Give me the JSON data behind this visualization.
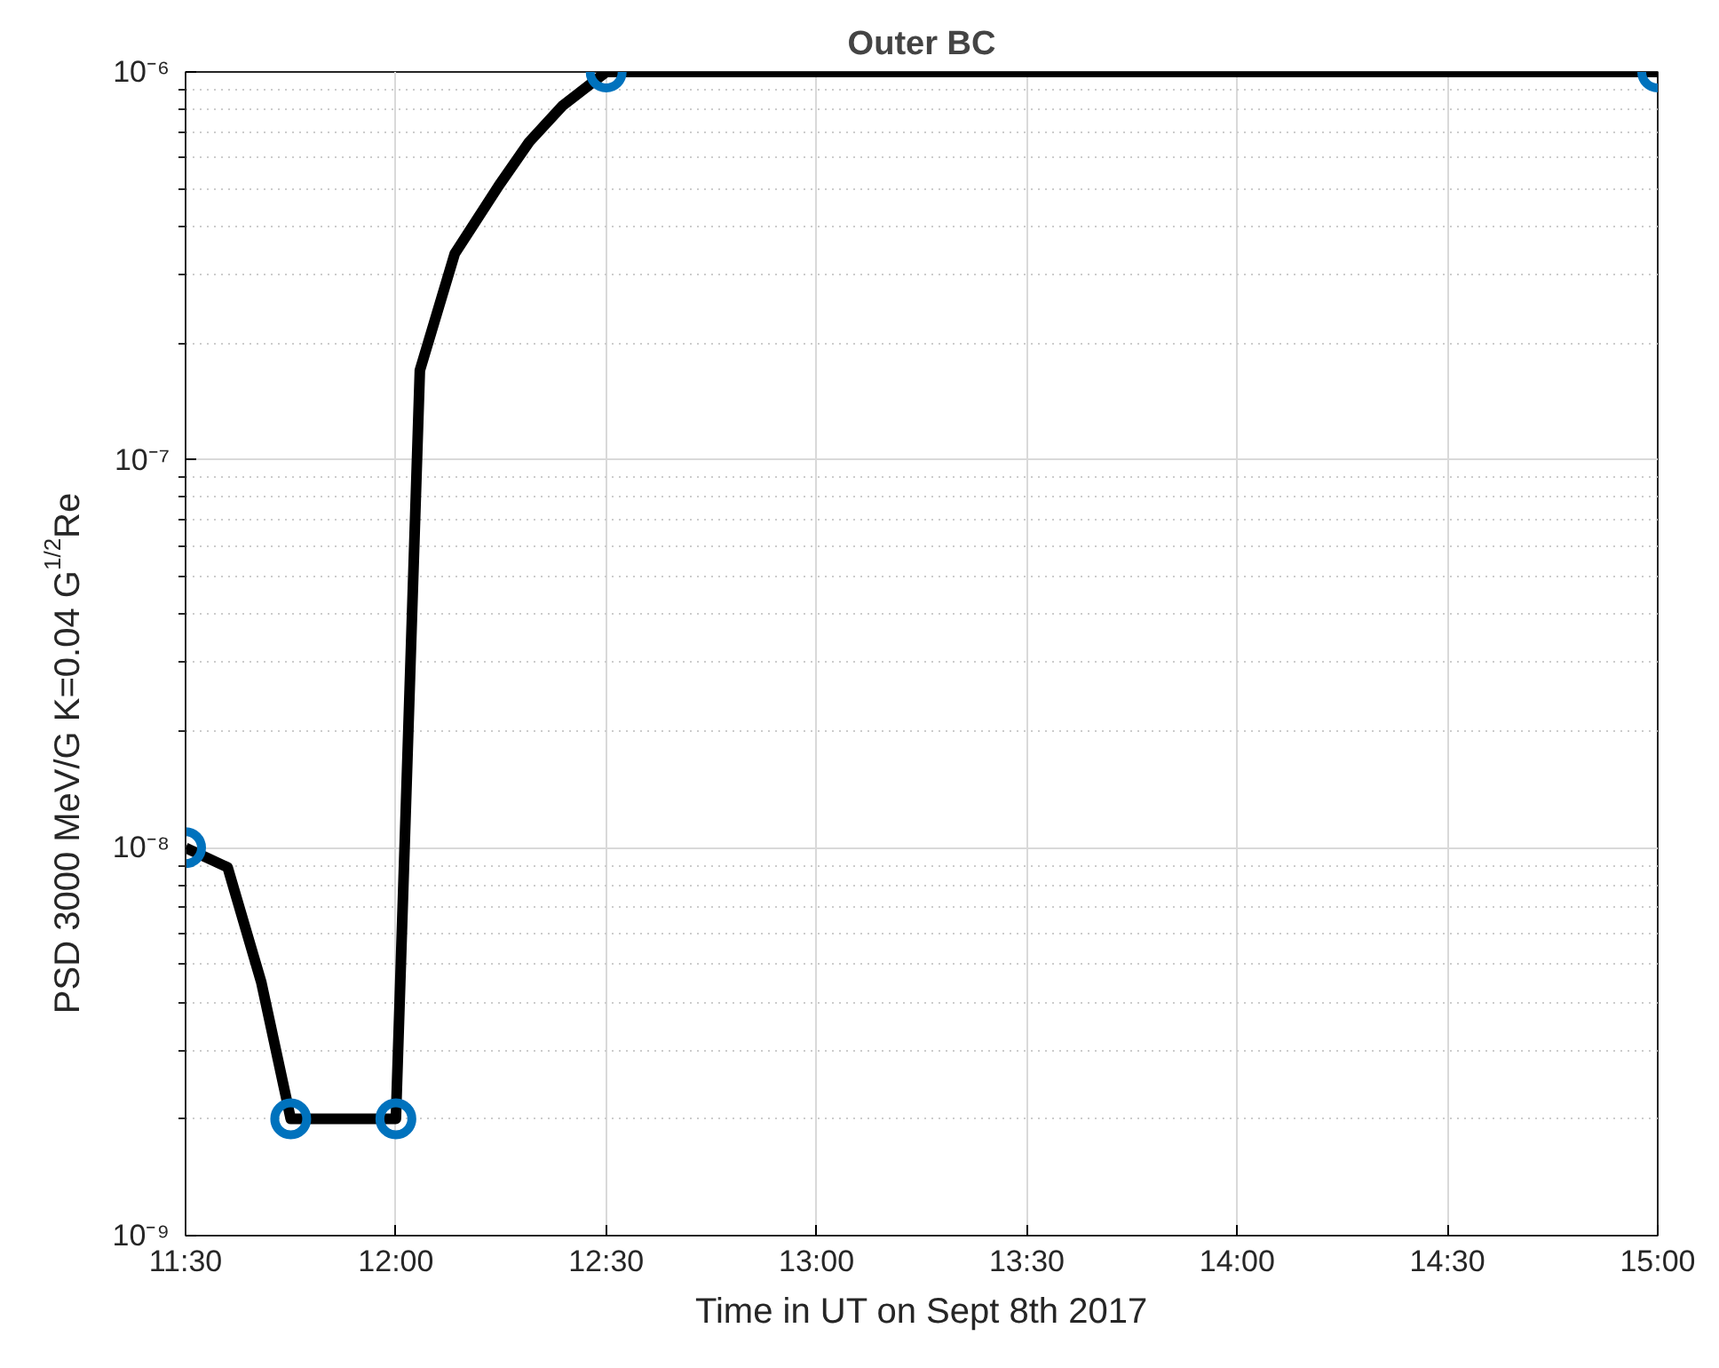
{
  "chart_data": {
    "type": "line",
    "title": "Outer BC",
    "xlabel": "Time in UT on Sept 8th 2017",
    "ylabel": "PSD 3000 MeV/G K=0.04 G$^{1/2}$Re",
    "log": "y",
    "grid": true,
    "legend": false,
    "xlim": [
      11.5,
      15
    ],
    "ylim": [
      1e-09,
      1e-06
    ],
    "xticks": [
      {
        "value": 11.5,
        "label": "11:30"
      },
      {
        "value": 12,
        "label": "12:00"
      },
      {
        "value": 12.5,
        "label": "12:30"
      },
      {
        "value": 13,
        "label": "13:00"
      },
      {
        "value": 13.5,
        "label": "13:30"
      },
      {
        "value": 14,
        "label": "14:00"
      },
      {
        "value": 14.5,
        "label": "14:30"
      },
      {
        "value": 15,
        "label": "15:00"
      }
    ],
    "yticks": [
      {
        "value": 1e-09,
        "label": "10⁻⁹"
      },
      {
        "value": 1e-08,
        "label": "10⁻⁸"
      },
      {
        "value": 1e-07,
        "label": "10⁻⁷"
      },
      {
        "value": 1e-06,
        "label": "10⁻⁶"
      }
    ],
    "series": [
      {
        "type": "line",
        "color": "#000000",
        "marker": "none",
        "line_style": "solid",
        "x": [
          11.5,
          11.6,
          11.68,
          11.75,
          12.0,
          12.057,
          12.14,
          12.245,
          12.317,
          12.397,
          12.5,
          15
        ],
        "values": [
          1e-08,
          8.9e-09,
          4.5e-09,
          2e-09,
          2e-09,
          1.7e-07,
          3.4e-07,
          5.1e-07,
          6.6e-07,
          8.2e-07,
          1e-06,
          1e-06
        ]
      },
      {
        "type": "scatter",
        "color": "#0072bd",
        "marker": "circle",
        "x": [
          11.5,
          11.75,
          12.0,
          12.5,
          15
        ],
        "values": [
          1e-08,
          2e-09,
          2e-09,
          1e-06,
          1e-06
        ]
      }
    ]
  }
}
